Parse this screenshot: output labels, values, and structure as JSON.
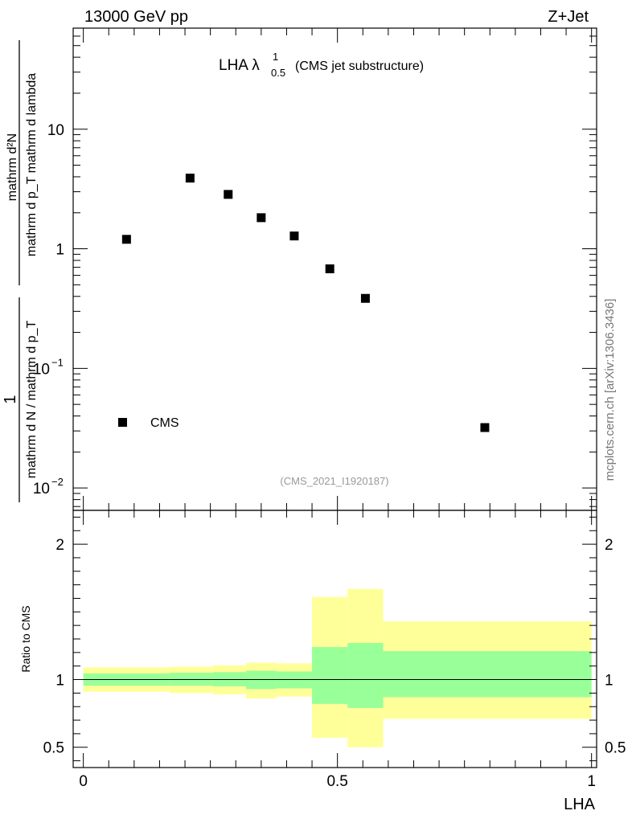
{
  "header": {
    "energy_label": "13000 GeV pp",
    "process_label": "Z+Jet",
    "title_main": "LHA λ",
    "title_sup": "1",
    "title_sub": "0.5",
    "title_suffix": "(CMS jet substructure)",
    "analysis_id": "(CMS_2021_I1920187)",
    "side_credit": "mcplots.cern.ch [arXiv:1306.3436]"
  },
  "chart_data": [
    {
      "type": "scatter",
      "panel": "main",
      "title": "LHA λ^1_0.5 (CMS jet substructure)",
      "ylabel_numerator": "1",
      "ylabel_denominator": "mathrm d N / mathrm d p_T",
      "ylabel_numerator2": "mathrm d²N",
      "ylabel_denominator2": "mathrm d p_T mathrm d lambda",
      "yscale": "log",
      "xlim": [
        -0.02,
        1.01
      ],
      "ylim": [
        0.0065,
        70
      ],
      "y_tick_labels": [
        "10^-2",
        "10^-1",
        "1",
        "10"
      ],
      "grid": false,
      "legend_position": "bottom-left",
      "series": [
        {
          "name": "CMS",
          "marker": "square",
          "color": "#000000",
          "x": [
            0.085,
            0.21,
            0.285,
            0.35,
            0.415,
            0.485,
            0.555,
            0.79
          ],
          "y": [
            1.2,
            3.9,
            2.85,
            1.82,
            1.28,
            0.68,
            0.385,
            0.032
          ]
        }
      ]
    },
    {
      "type": "area",
      "panel": "ratio",
      "ylabel": "Ratio to CMS",
      "xlabel": "LHA",
      "xlim": [
        -0.02,
        1.01
      ],
      "ylim": [
        0.35,
        2.25
      ],
      "x_tick_labels": [
        "0",
        "0.5",
        "1"
      ],
      "y_tick_labels": [
        "0.5",
        "1",
        "2"
      ],
      "reference_line": 1,
      "bins": [
        0,
        0.17,
        0.255,
        0.32,
        0.38,
        0.45,
        0.52,
        0.59,
        1.0
      ],
      "band_inner": {
        "color": "#99ff99",
        "lower": [
          0.955,
          0.955,
          0.95,
          0.93,
          0.935,
          0.82,
          0.79,
          0.87
        ],
        "upper": [
          1.045,
          1.05,
          1.055,
          1.065,
          1.06,
          1.24,
          1.27,
          1.21
        ]
      },
      "band_outer": {
        "color": "#ffff99",
        "lower": [
          0.91,
          0.9,
          0.89,
          0.86,
          0.875,
          0.57,
          0.5,
          0.71
        ],
        "upper": [
          1.09,
          1.095,
          1.105,
          1.125,
          1.12,
          1.61,
          1.67,
          1.43
        ]
      }
    }
  ]
}
